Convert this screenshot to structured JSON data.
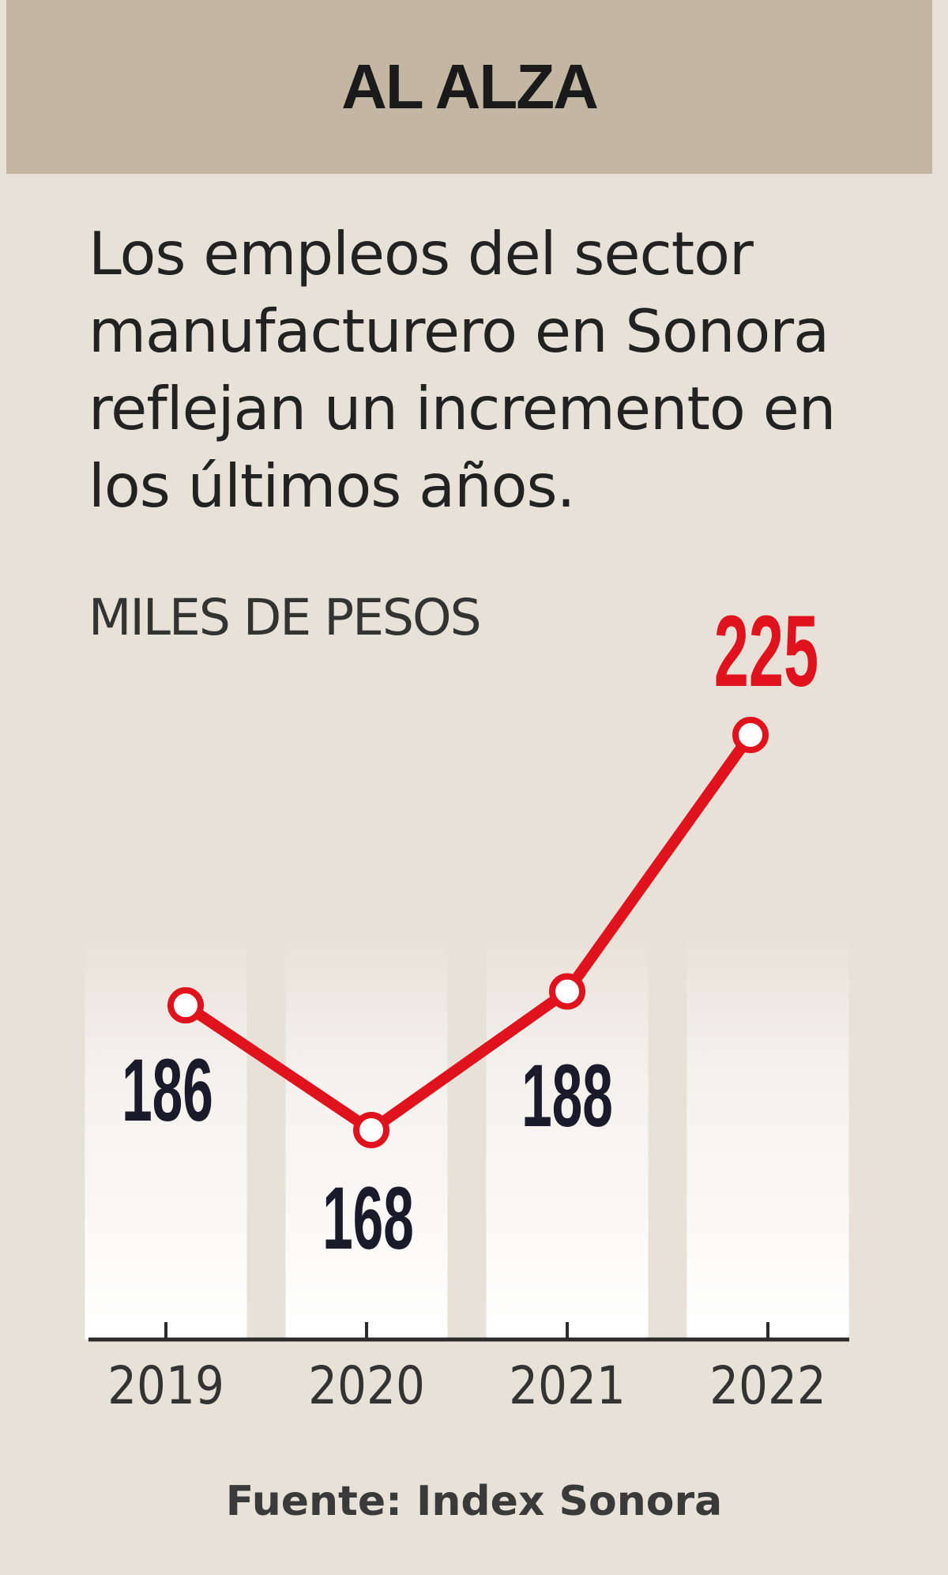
{
  "header": {
    "title": "AL ALZA"
  },
  "description": "Los empleos del sector manufacturero en Sonora reflejan un incremento en los últimos años.",
  "units_label": "MILES DE PESOS",
  "source": "Fuente: Index Sonora",
  "colors": {
    "line": "#e0121d",
    "highlight_label": "#e0121d",
    "label": "#1a1a2a",
    "header_bg": "#c3b6a3",
    "page_bg": "#e8e1d8"
  },
  "chart_data": {
    "type": "line",
    "categories": [
      "2019",
      "2020",
      "2021",
      "2022"
    ],
    "values": [
      186,
      168,
      188,
      225
    ],
    "value_labels": [
      "186",
      "168",
      "188",
      "225"
    ],
    "highlight_index": 3,
    "ylabel": "MILES DE PESOS",
    "grid": false
  }
}
